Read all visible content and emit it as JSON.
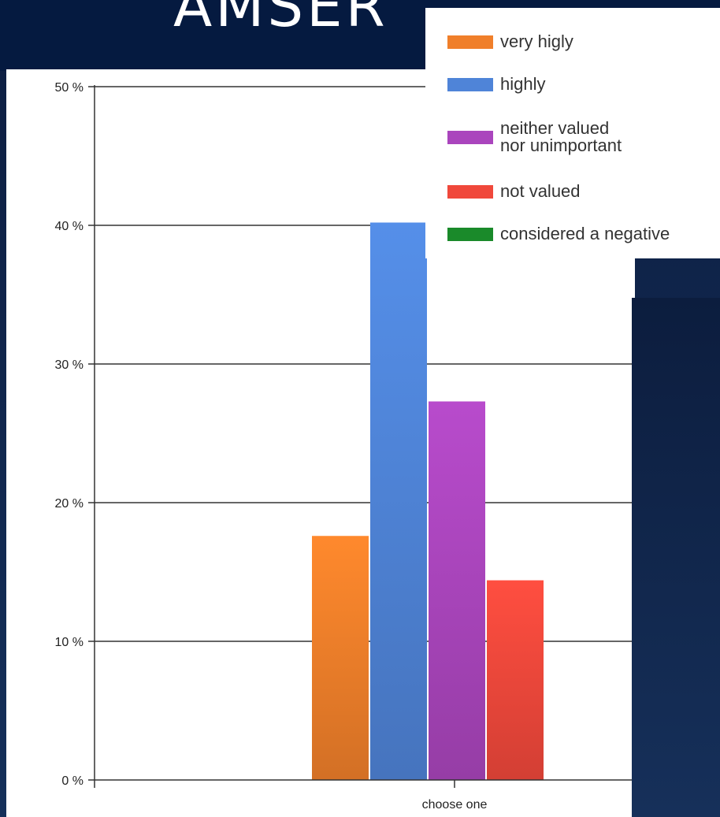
{
  "slide": {
    "title": "AMSER"
  },
  "chart_data": {
    "type": "bar",
    "categories": [
      "choose one"
    ],
    "series": [
      {
        "name": "very higly",
        "values": [
          17.6
        ],
        "color": "#f07f2a"
      },
      {
        "name": "highly",
        "values": [
          40.2
        ],
        "color": "#4f84d8"
      },
      {
        "name": "neither valued\nnor unimportant",
        "values": [
          27.3
        ],
        "color": "#aa45bd"
      },
      {
        "name": "not valued",
        "values": [
          14.4
        ],
        "color": "#f0483b"
      },
      {
        "name": "considered a negative",
        "values": [
          0
        ],
        "color": "#1a8a2a"
      }
    ],
    "yticks": [
      "0 %",
      "10 %",
      "20 %",
      "30 %",
      "40 %",
      "50 %"
    ],
    "ylim": [
      0,
      50
    ],
    "grid": true,
    "legend": "top-right"
  }
}
